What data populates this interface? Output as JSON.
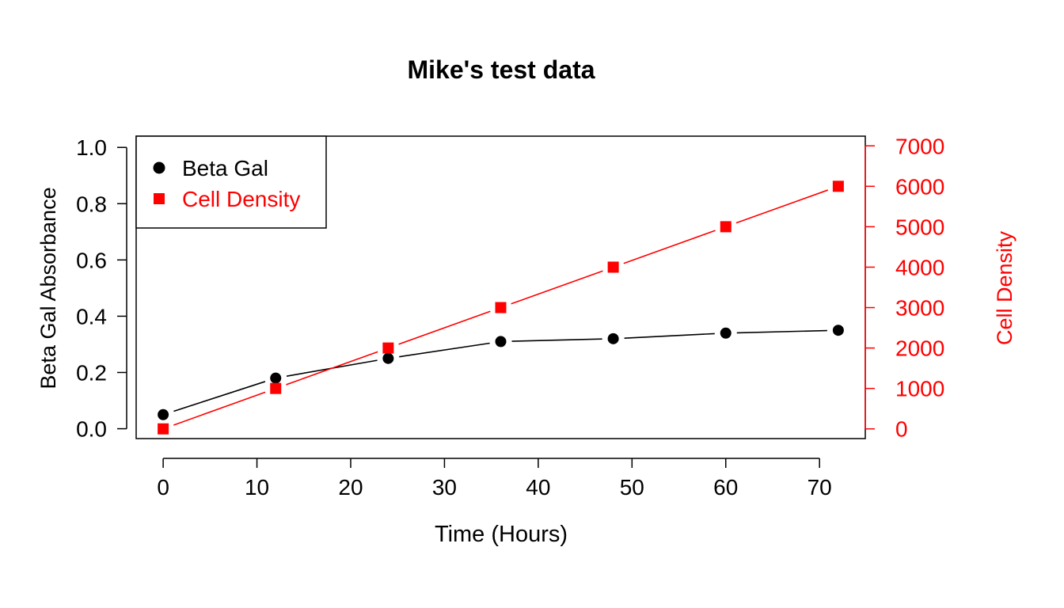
{
  "chart_data": {
    "type": "line",
    "title": "Mike's test data",
    "xlabel": "Time (Hours)",
    "ylabel": "Beta Gal Absorbance",
    "ylabel_right": "Cell Density",
    "x": [
      0,
      12,
      24,
      36,
      48,
      60,
      72
    ],
    "xlim": [
      -2.88,
      74.88
    ],
    "xticks": [
      "0",
      "10",
      "20",
      "30",
      "40",
      "50",
      "60",
      "70"
    ],
    "xtick_values": [
      0,
      10,
      20,
      30,
      40,
      50,
      60,
      70
    ],
    "ylim": [
      -0.035,
      1.04
    ],
    "yticks": [
      "0.0",
      "0.2",
      "0.4",
      "0.6",
      "0.8",
      "1.0"
    ],
    "ytick_values": [
      0,
      0.2,
      0.4,
      0.6,
      0.8,
      1.0
    ],
    "ylim_right": [
      -240,
      7240
    ],
    "yticks_right": [
      "0",
      "1000",
      "2000",
      "3000",
      "4000",
      "5000",
      "6000",
      "7000"
    ],
    "ytick_values_right": [
      0,
      1000,
      2000,
      3000,
      4000,
      5000,
      6000,
      7000
    ],
    "legend_position": "top-left",
    "grid": false,
    "series": [
      {
        "name": "Beta Gal",
        "axis": "left",
        "marker": "circle",
        "color": "#000000",
        "values": [
          0.05,
          0.18,
          0.25,
          0.31,
          0.32,
          0.34,
          0.35
        ]
      },
      {
        "name": "Cell Density",
        "axis": "right",
        "marker": "square",
        "color": "#ff0000",
        "values": [
          0,
          1000,
          2000,
          3000,
          4000,
          5000,
          6000
        ]
      }
    ]
  }
}
